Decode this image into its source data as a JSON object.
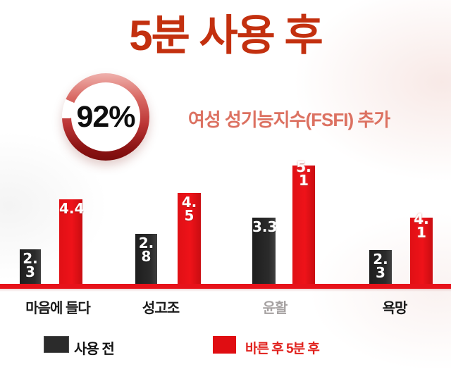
{
  "page": {
    "title": "5분 사용 후",
    "subtitle": "여성 성기능지수(FSFI) 추가"
  },
  "stat": {
    "percent": "92%"
  },
  "chart_data": {
    "type": "bar",
    "title": "여성 성기능지수(FSFI) 추가",
    "categories": [
      "마음에 들다",
      "성고조",
      "윤활",
      "욕망"
    ],
    "series": [
      {
        "name": "사용 전",
        "color": "#2b2b2b",
        "values": [
          2.3,
          2.8,
          3.3,
          2.3
        ]
      },
      {
        "name": "바른 후 5분 후",
        "color": "#e3101a",
        "values": [
          4.4,
          4.5,
          5.1,
          4.1
        ]
      }
    ],
    "value_labels": [
      "2.\n3",
      "4.4",
      "2.\n8",
      "4.\n5",
      "3.3",
      "5.\n1",
      "2.\n3",
      "4.\n1"
    ],
    "ylim": [
      0,
      5.5
    ],
    "grid": false,
    "legend_position": "bottom",
    "baseline_color": "#e7121a"
  },
  "legend": {
    "before_label": "사용 전",
    "after_label": "바른 후 5분 후"
  },
  "colors": {
    "title": "#c3300f",
    "subtitle": "#dc7161",
    "bar_before": "#2b2b2b",
    "bar_after": "#e3101a",
    "baseline": "#e7121a",
    "legend_after_text": "#e1221e",
    "category_muted": "#a7a3a3",
    "stat_text": "#0e0e0e"
  }
}
